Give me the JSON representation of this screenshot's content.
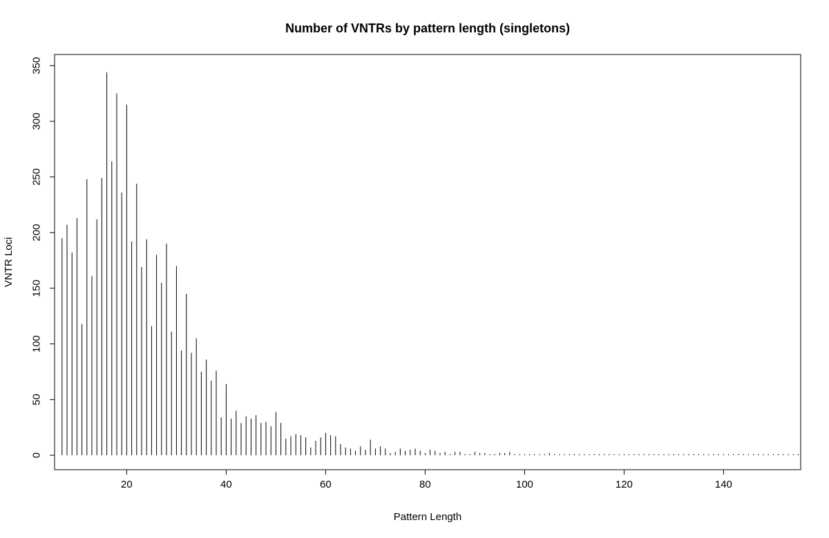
{
  "chart_data": {
    "type": "bar",
    "title": "Number of VNTRs by pattern length (singletons)",
    "xlabel": "Pattern Length",
    "ylabel": "VNTR Loci",
    "xlim": [
      5.5,
      155.5
    ],
    "ylim": [
      -13,
      360
    ],
    "x_ticks": [
      20,
      40,
      60,
      80,
      100,
      120,
      140
    ],
    "y_ticks": [
      0,
      50,
      100,
      150,
      200,
      250,
      300,
      350
    ],
    "grid": false,
    "legend": "none",
    "x": [
      7,
      8,
      9,
      10,
      11,
      12,
      13,
      14,
      15,
      16,
      17,
      18,
      19,
      20,
      21,
      22,
      23,
      24,
      25,
      26,
      27,
      28,
      29,
      30,
      31,
      32,
      33,
      34,
      35,
      36,
      37,
      38,
      39,
      40,
      41,
      42,
      43,
      44,
      45,
      46,
      47,
      48,
      49,
      50,
      51,
      52,
      53,
      54,
      55,
      56,
      57,
      58,
      59,
      60,
      61,
      62,
      63,
      64,
      65,
      66,
      67,
      68,
      69,
      70,
      71,
      72,
      73,
      74,
      75,
      76,
      77,
      78,
      79,
      80,
      81,
      82,
      83,
      84,
      85,
      86,
      87,
      88,
      89,
      90,
      91,
      92,
      93,
      94,
      95,
      96,
      97,
      98,
      99,
      100,
      101,
      102,
      103,
      104,
      105,
      106,
      107,
      108,
      109,
      110,
      111,
      112,
      113,
      114,
      115,
      116,
      117,
      118,
      119,
      120,
      121,
      122,
      123,
      124,
      125,
      126,
      127,
      128,
      129,
      130,
      131,
      132,
      133,
      134,
      135,
      136,
      137,
      138,
      139,
      140,
      141,
      142,
      143,
      144,
      145,
      146,
      147,
      148,
      149,
      150,
      151,
      152,
      153,
      154,
      155
    ],
    "values": [
      195,
      207,
      182,
      213,
      118,
      248,
      161,
      212,
      249,
      344,
      264,
      325,
      236,
      315,
      192,
      244,
      169,
      194,
      116,
      180,
      155,
      190,
      111,
      170,
      94,
      145,
      92,
      105,
      75,
      86,
      67,
      76,
      34,
      64,
      33,
      40,
      29,
      35,
      33,
      36,
      29,
      30,
      26,
      39,
      29,
      15,
      17,
      19,
      18,
      16,
      7,
      13,
      16,
      20,
      18,
      17,
      10,
      7,
      6,
      4,
      8,
      5,
      14,
      6,
      8,
      6,
      2,
      3,
      6,
      4,
      5,
      6,
      4,
      2,
      5,
      4,
      2,
      3,
      1,
      3,
      3,
      1,
      1,
      3,
      2,
      2,
      1,
      1,
      2,
      2,
      3,
      1,
      1,
      1,
      1,
      1,
      1,
      1,
      2,
      1,
      1,
      1,
      1,
      1,
      1,
      1,
      1,
      1,
      1,
      1,
      1,
      1,
      1,
      1,
      1,
      1,
      1,
      1,
      1,
      1,
      1,
      1,
      1,
      1,
      1,
      1,
      1,
      1,
      1,
      1,
      1,
      1,
      1,
      1,
      1,
      1,
      1,
      1,
      1,
      1,
      1,
      1,
      1,
      1,
      1,
      1,
      1,
      1,
      1
    ],
    "colors": {
      "bar": "#000000",
      "axis": "#000000",
      "background": "#ffffff"
    }
  }
}
